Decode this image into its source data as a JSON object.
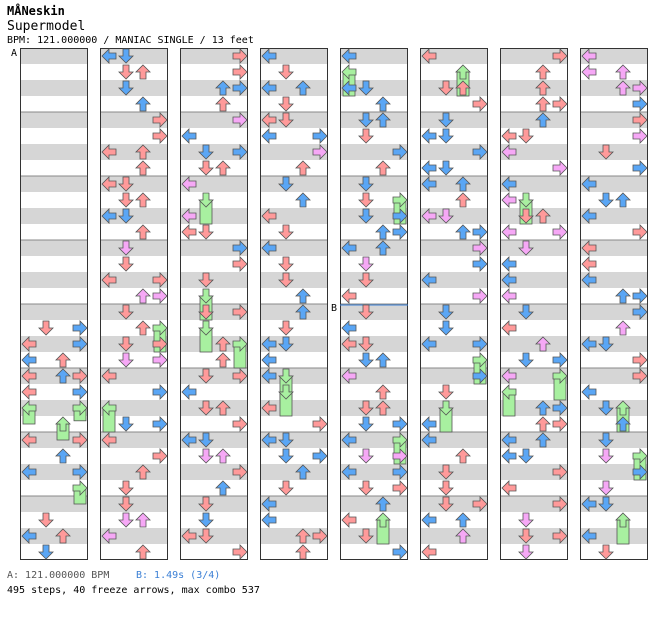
{
  "header": {
    "artist": "MÅNeskin",
    "title": "Supermodel",
    "info": "BPM: 121.000000 / MANIAC SINGLE / 13 feet"
  },
  "markers": {
    "a": "A",
    "b": "B"
  },
  "footer": {
    "bpm_change": "A: 121.000000 BPM",
    "stop": "B: 1.49s (3/4)",
    "stats": "495 steps, 40 freeze arrows, max combo 537"
  },
  "colors": {
    "quarter": "#ff9a9a",
    "eighth": "#5aa6f5",
    "sixteenth": "#f6a8f6",
    "freeze": "#a8f0a0",
    "band_gray": "#d6d6d6",
    "band_white": "#ffffff",
    "border": "#333333"
  },
  "chart_data": {
    "type": "step-chart",
    "arrow_directions": [
      "left",
      "down",
      "up",
      "right"
    ],
    "columns": 8,
    "measures_per_column": 8,
    "total_steps": 495,
    "freeze_arrows": 40,
    "max_combo": 537,
    "bpm": 121.0,
    "stop_seconds": 1.49,
    "notes": [
      {
        "c": 0,
        "m": 4,
        "b": 0.25,
        "l": 1,
        "k": "q"
      },
      {
        "c": 0,
        "m": 4,
        "b": 0.25,
        "l": 3,
        "k": "e"
      },
      {
        "c": 0,
        "m": 4,
        "b": 0.5,
        "l": 0,
        "k": "q"
      },
      {
        "c": 0,
        "m": 4,
        "b": 0.5,
        "l": 3,
        "k": "e"
      },
      {
        "c": 0,
        "m": 4,
        "b": 0.75,
        "l": 0,
        "k": "e"
      },
      {
        "c": 0,
        "m": 4,
        "b": 0.75,
        "l": 2,
        "k": "q"
      },
      {
        "c": 0,
        "m": 5,
        "b": 0,
        "l": 0,
        "k": "q"
      },
      {
        "c": 0,
        "m": 5,
        "b": 0,
        "l": 2,
        "k": "e"
      },
      {
        "c": 0,
        "m": 5,
        "b": 0,
        "l": 3,
        "k": "q"
      },
      {
        "c": 0,
        "m": 5,
        "b": 0.25,
        "l": 0,
        "k": "q"
      },
      {
        "c": 0,
        "m": 5,
        "b": 0.25,
        "l": 3,
        "k": "e"
      },
      {
        "c": 0,
        "m": 5,
        "b": 0.5,
        "l": 0,
        "k": "f",
        "len": 0.25
      },
      {
        "c": 0,
        "m": 5,
        "b": 0.5,
        "l": 3,
        "k": "f",
        "len": 0.2
      },
      {
        "c": 0,
        "m": 5,
        "b": 0.75,
        "l": 2,
        "k": "f",
        "len": 0.25
      },
      {
        "c": 0,
        "m": 6,
        "b": 0,
        "l": 0,
        "k": "q"
      },
      {
        "c": 0,
        "m": 6,
        "b": 0,
        "l": 3,
        "k": "q"
      },
      {
        "c": 0,
        "m": 6,
        "b": 0.25,
        "l": 2,
        "k": "e"
      },
      {
        "c": 0,
        "m": 6,
        "b": 0.5,
        "l": 0,
        "k": "e"
      },
      {
        "c": 0,
        "m": 6,
        "b": 0.5,
        "l": 3,
        "k": "e"
      },
      {
        "c": 0,
        "m": 6,
        "b": 0.75,
        "l": 3,
        "k": "f",
        "len": 0.25
      },
      {
        "c": 0,
        "m": 7,
        "b": 0.25,
        "l": 1,
        "k": "q"
      },
      {
        "c": 0,
        "m": 7,
        "b": 0.5,
        "l": 0,
        "k": "e"
      },
      {
        "c": 0,
        "m": 7,
        "b": 0.5,
        "l": 2,
        "k": "q"
      },
      {
        "c": 0,
        "m": 7,
        "b": 0.75,
        "l": 1,
        "k": "e"
      }
    ]
  }
}
